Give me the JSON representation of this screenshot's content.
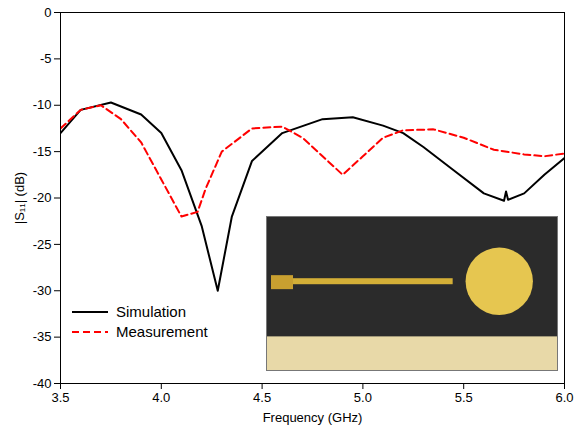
{
  "chart_data": {
    "type": "line",
    "xlabel": "Frequency (GHz)",
    "ylabel": "|S₁₁| (dB)",
    "xlim": [
      3.5,
      6.0
    ],
    "xticks": [
      3.5,
      {
        "value": 4,
        "label": "4.0"
      },
      4.5,
      {
        "value": 5,
        "label": "5.0"
      },
      5.5,
      {
        "value": 6,
        "label": "6.0"
      }
    ],
    "ylim": [
      -40,
      0
    ],
    "yticks": [
      -40,
      -35,
      -30,
      -25,
      -20,
      -15,
      -10,
      -5,
      0
    ],
    "legend": "lower left",
    "grid": false,
    "series": [
      {
        "name": "Simulation",
        "color": "#000000",
        "line_style": "solid",
        "x": [
          3.5,
          3.6,
          3.75,
          3.9,
          4.0,
          4.1,
          4.2,
          4.28,
          4.35,
          4.45,
          4.6,
          4.8,
          4.95,
          5.1,
          5.2,
          5.3,
          5.45,
          5.6,
          5.7,
          5.71,
          5.72,
          5.8,
          5.9,
          6.0
        ],
        "values": [
          -13,
          -10.5,
          -9.7,
          -11,
          -13,
          -17,
          -23,
          -30,
          -22,
          -16,
          -13,
          -11.5,
          -11.3,
          -12.2,
          -13,
          -14.5,
          -17,
          -19.5,
          -20.3,
          -19.3,
          -20.2,
          -19.5,
          -17.5,
          -15.7
        ]
      },
      {
        "name": "Measurement",
        "color": "#ff0000",
        "line_style": "dashed",
        "x": [
          3.5,
          3.6,
          3.7,
          3.8,
          3.9,
          4.0,
          4.1,
          4.18,
          4.22,
          4.3,
          4.45,
          4.6,
          4.7,
          4.8,
          4.9,
          5.0,
          5.1,
          5.2,
          5.35,
          5.5,
          5.65,
          5.8,
          5.9,
          6.0
        ],
        "values": [
          -12.5,
          -10.5,
          -10,
          -11.5,
          -14,
          -18,
          -22,
          -21.5,
          -19,
          -15,
          -12.5,
          -12.3,
          -13.5,
          -15.5,
          -17.5,
          -15.5,
          -13.5,
          -12.7,
          -12.6,
          -13.5,
          -14.8,
          -15.3,
          -15.5,
          -15.2
        ]
      }
    ]
  }
}
